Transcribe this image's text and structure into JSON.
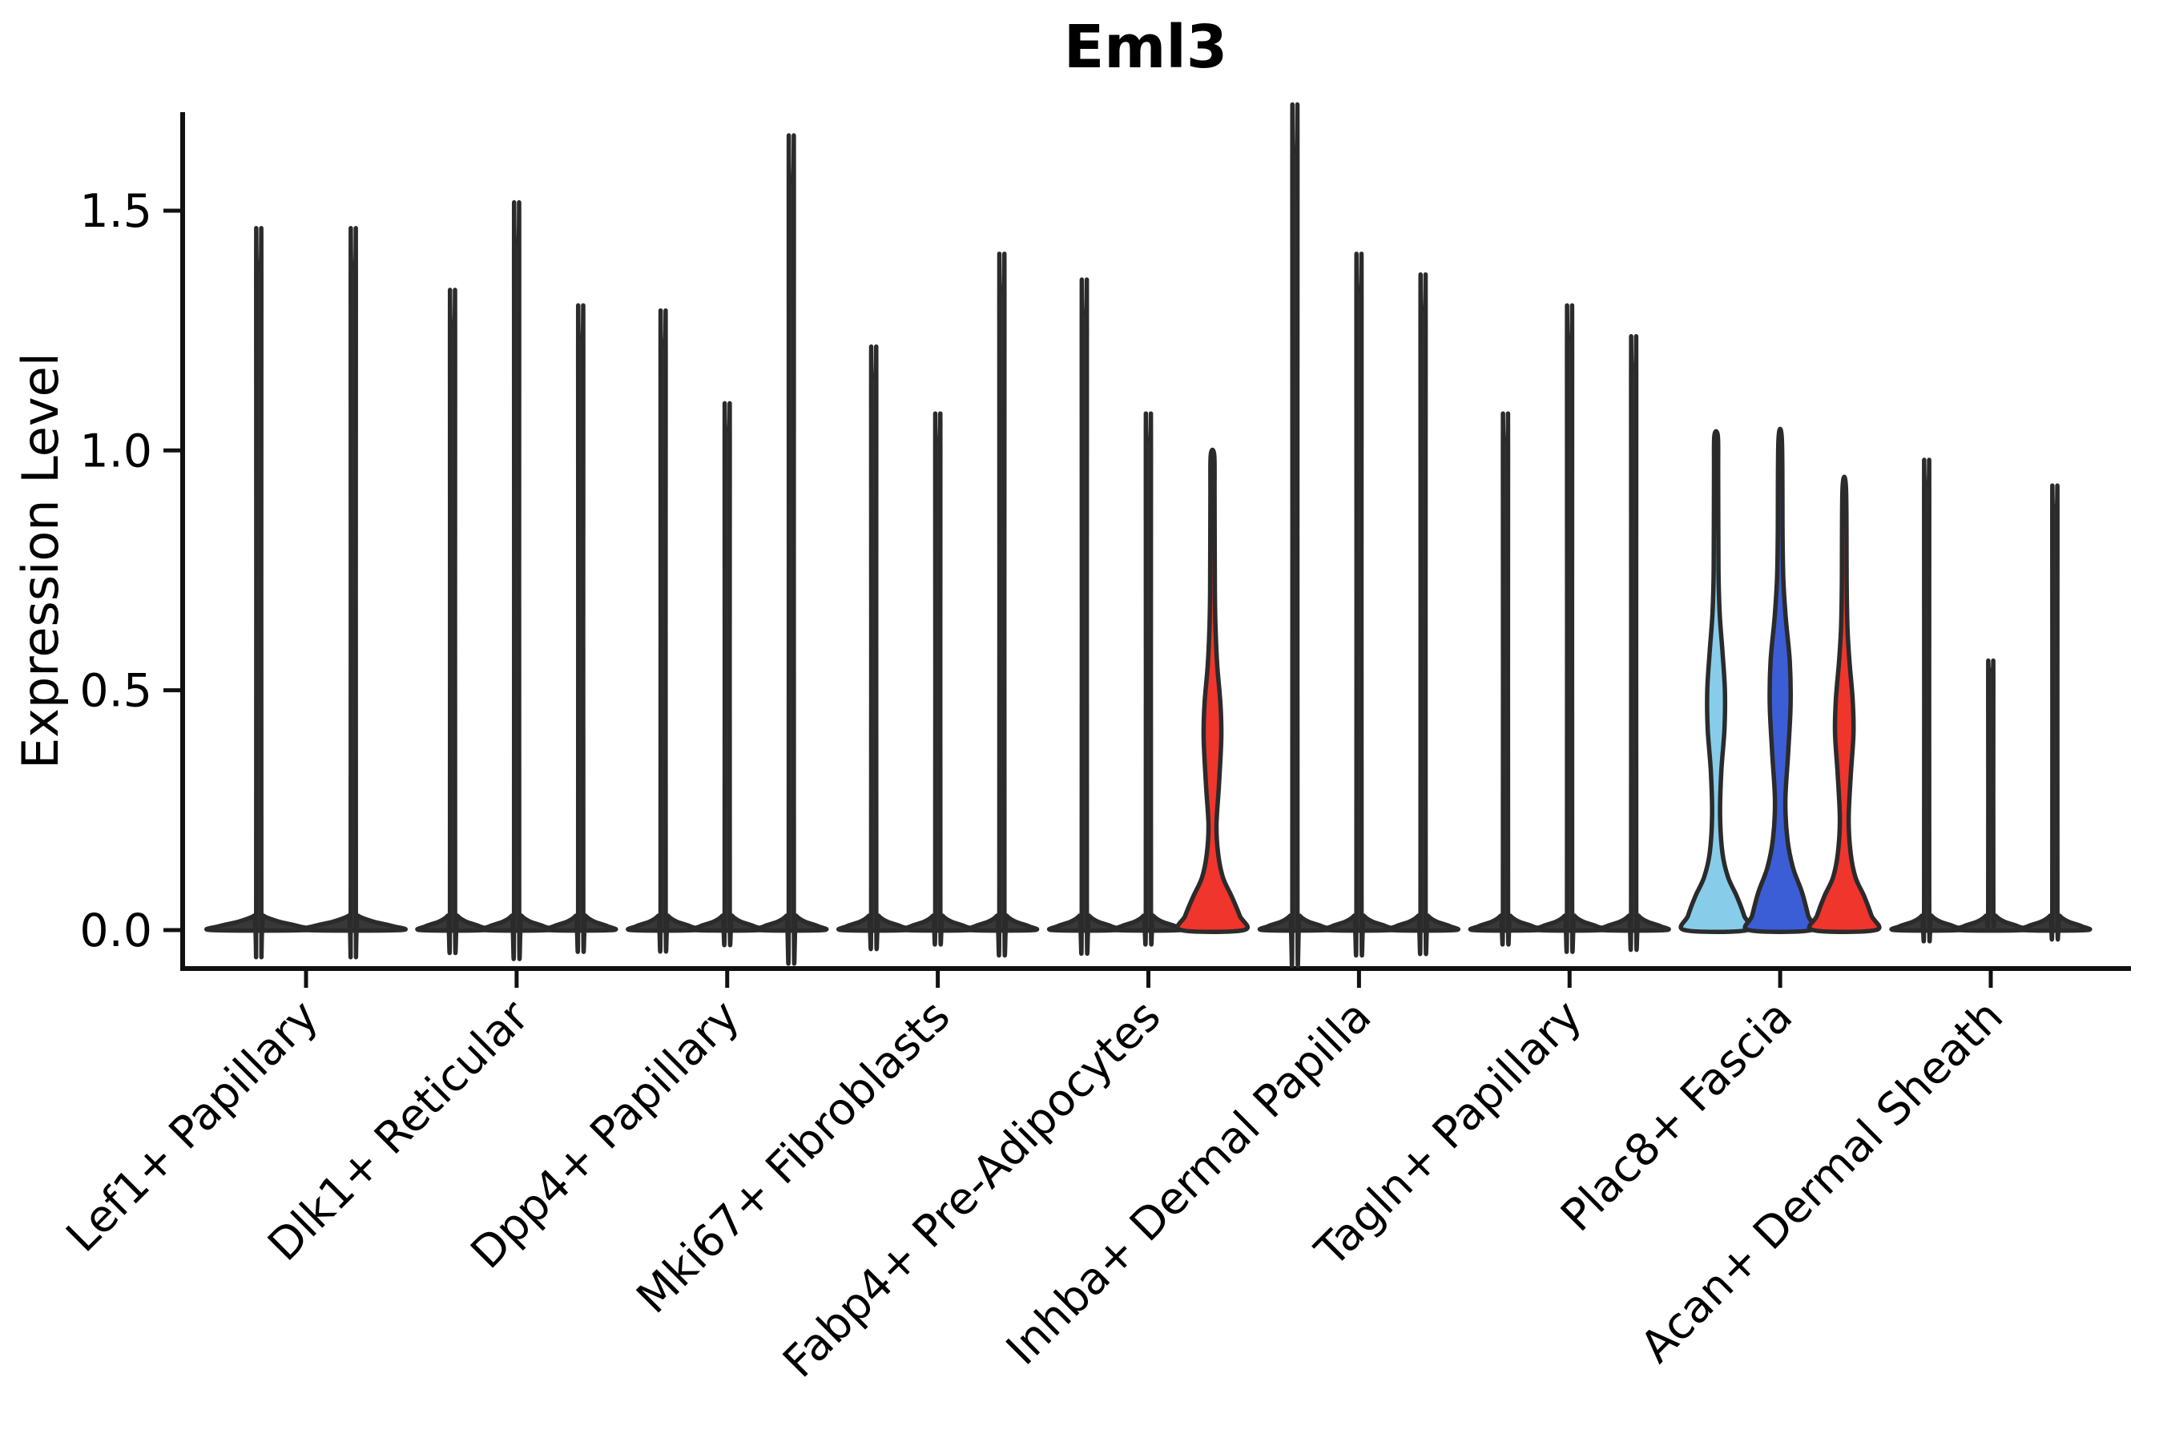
{
  "page": {
    "background": "#ffffff"
  },
  "chart_data": {
    "type": "violin",
    "title": "Eml3",
    "ylabel": "Expression Level",
    "xlabel": "",
    "yticks": [
      1.5,
      1.0,
      0.5,
      0.0
    ],
    "ylim": [
      -0.05,
      1.7
    ],
    "grid": false,
    "legend": "none",
    "colors": {
      "outline": "#2b2b2b",
      "thin_fill": "#383838",
      "red": "#f0352c",
      "light_blue": "#87cdea",
      "blue": "#3b5ed6",
      "axis": "#111111"
    },
    "categories": [
      "Lef1+ Papillary",
      "Dlk1+ Reticular",
      "Dpp4+ Papillary",
      "Mki67+ Fibroblasts",
      "Fabp4+ Pre-Adipocytes",
      "Inhba+ Dermal Papilla",
      "Tagln+ Papillary",
      "Plac8+ Fascia",
      "Acan+ Dermal Sheath"
    ],
    "groups": [
      {
        "category": "Lef1+ Papillary",
        "slot_halfwidth": 58,
        "offsets": [
          -59,
          59
        ],
        "violins": [
          {
            "max": 1.38,
            "fill": null
          },
          {
            "max": 1.38,
            "fill": null
          }
        ]
      },
      {
        "category": "Dlk1+ Reticular",
        "slot_halfwidth": 39,
        "offsets": [
          -80,
          0,
          80
        ],
        "violins": [
          {
            "max": 1.26,
            "fill": null
          },
          {
            "max": 1.43,
            "fill": null
          },
          {
            "max": 1.23,
            "fill": null
          }
        ]
      },
      {
        "category": "Dpp4+ Papillary",
        "slot_halfwidth": 39,
        "offsets": [
          -80,
          0,
          80
        ],
        "violins": [
          {
            "max": 1.22,
            "fill": null
          },
          {
            "max": 1.04,
            "fill": null
          },
          {
            "max": 1.56,
            "fill": null
          }
        ]
      },
      {
        "category": "Mki67+ Fibroblasts",
        "slot_halfwidth": 39,
        "offsets": [
          -80,
          0,
          80
        ],
        "violins": [
          {
            "max": 1.15,
            "fill": null
          },
          {
            "max": 1.02,
            "fill": null
          },
          {
            "max": 1.33,
            "fill": null
          }
        ]
      },
      {
        "category": "Fabp4+ Pre-Adipocytes",
        "slot_halfwidth": 39,
        "offsets": [
          -80,
          0,
          80
        ],
        "violins": [
          {
            "max": 1.28,
            "fill": null
          },
          {
            "max": 1.02,
            "fill": null
          },
          {
            "max": 0.99,
            "fill": "red",
            "profile": [
              [
                0,
                39
              ],
              [
                0.03,
                34
              ],
              [
                0.07,
                24
              ],
              [
                0.11,
                13
              ],
              [
                0.16,
                7
              ],
              [
                0.22,
                5
              ],
              [
                0.3,
                8
              ],
              [
                0.4,
                11
              ],
              [
                0.47,
                10
              ],
              [
                0.55,
                6
              ],
              [
                0.62,
                4
              ],
              [
                0.7,
                3
              ],
              [
                0.9,
                2.6
              ],
              [
                0.99,
                2.2
              ]
            ]
          }
        ]
      },
      {
        "category": "Inhba+ Dermal Papilla",
        "slot_halfwidth": 39,
        "offsets": [
          -80,
          0,
          80
        ],
        "violins": [
          {
            "max": 1.62,
            "fill": null
          },
          {
            "max": 1.33,
            "fill": null
          },
          {
            "max": 1.29,
            "fill": null
          }
        ]
      },
      {
        "category": "Tagln+ Papillary",
        "slot_halfwidth": 39,
        "offsets": [
          -80,
          0,
          80
        ],
        "violins": [
          {
            "max": 1.02,
            "fill": null
          },
          {
            "max": 1.23,
            "fill": null
          },
          {
            "max": 1.17,
            "fill": null
          }
        ]
      },
      {
        "category": "Plac8+ Fascia",
        "slot_halfwidth": 39,
        "offsets": [
          -80,
          0,
          80
        ],
        "violins": [
          {
            "max": 1.03,
            "fill": "light_blue",
            "profile": [
              [
                0,
                39
              ],
              [
                0.03,
                35
              ],
              [
                0.07,
                26
              ],
              [
                0.11,
                15
              ],
              [
                0.16,
                8
              ],
              [
                0.24,
                5
              ],
              [
                0.33,
                6.5
              ],
              [
                0.42,
                10.5
              ],
              [
                0.5,
                11
              ],
              [
                0.58,
                8
              ],
              [
                0.66,
                4.5
              ],
              [
                0.75,
                3
              ],
              [
                0.95,
                2.6
              ],
              [
                1.03,
                2.2
              ]
            ]
          },
          {
            "max": 1.02,
            "fill": "blue",
            "profile": [
              [
                0,
                39
              ],
              [
                0.03,
                35
              ],
              [
                0.08,
                27
              ],
              [
                0.13,
                16
              ],
              [
                0.19,
                9
              ],
              [
                0.27,
                6.5
              ],
              [
                0.37,
                10
              ],
              [
                0.47,
                13
              ],
              [
                0.56,
                12
              ],
              [
                0.65,
                7
              ],
              [
                0.73,
                4
              ],
              [
                0.82,
                3
              ],
              [
                1.02,
                2.2
              ]
            ]
          },
          {
            "max": 0.92,
            "fill": "red",
            "profile": [
              [
                0,
                39
              ],
              [
                0.03,
                34
              ],
              [
                0.07,
                25
              ],
              [
                0.11,
                14
              ],
              [
                0.16,
                8
              ],
              [
                0.23,
                5.5
              ],
              [
                0.32,
                8
              ],
              [
                0.41,
                11.5
              ],
              [
                0.48,
                10.5
              ],
              [
                0.56,
                6.5
              ],
              [
                0.63,
                4
              ],
              [
                0.72,
                3
              ],
              [
                0.92,
                2.2
              ]
            ]
          }
        ]
      },
      {
        "category": "Acan+ Dermal Sheath",
        "slot_halfwidth": 39,
        "offsets": [
          -80,
          0,
          80
        ],
        "violins": [
          {
            "max": 0.93,
            "fill": null
          },
          {
            "max": 0.54,
            "fill": null
          },
          {
            "max": 0.88,
            "fill": null
          }
        ]
      }
    ]
  }
}
